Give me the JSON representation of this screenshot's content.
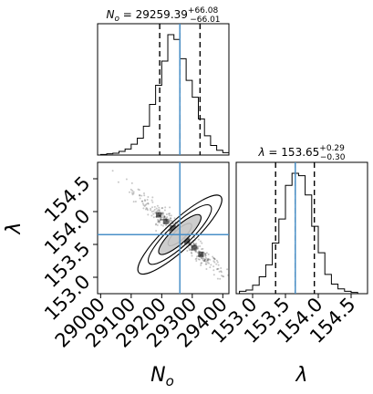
{
  "chart_data": {
    "type": "corner",
    "parameters": [
      {
        "label": "N_o",
        "label_display": "N",
        "label_sub": "o",
        "title_prefix": "N",
        "title_sub": "o",
        "title_value": "29259.39",
        "title_plus": "+66.08",
        "title_minus": "−66.01",
        "truth": 29259.39,
        "quantiles": [
          29193.38,
          29259.39,
          29325.47
        ],
        "ticks": [
          29000,
          29100,
          29200,
          29300,
          29400
        ],
        "tick_labels": [
          "29000",
          "29100",
          "29200",
          "29300",
          "29400"
        ],
        "range": [
          28990,
          29420
        ]
      },
      {
        "label": "λ",
        "title_prefix": "λ",
        "title_value": "153.65",
        "title_plus": "+0.29",
        "title_minus": "−0.30",
        "truth": 153.65,
        "quantiles": [
          153.35,
          153.65,
          153.94
        ],
        "ticks": [
          153.0,
          153.5,
          154.0,
          154.5
        ],
        "tick_labels": [
          "153.0",
          "153.5",
          "154.0",
          "154.5"
        ],
        "range": [
          152.75,
          154.75
        ]
      }
    ],
    "histograms": [
      {
        "param": "N_o",
        "bin_centers": [
          29010,
          29030,
          29050,
          29070,
          29090,
          29110,
          29130,
          29150,
          29170,
          29190,
          29210,
          29230,
          29250,
          29270,
          29290,
          29310,
          29330,
          29350,
          29370,
          29390,
          29410
        ],
        "counts": [
          0.5,
          1,
          1.5,
          3,
          5,
          9,
          14,
          24,
          42,
          58,
          78,
          100,
          96,
          80,
          62,
          48,
          30,
          16,
          8,
          4,
          2
        ]
      },
      {
        "param": "λ",
        "bin_centers": [
          152.85,
          152.95,
          153.05,
          153.15,
          153.25,
          153.35,
          153.45,
          153.55,
          153.65,
          153.75,
          153.85,
          153.95,
          154.05,
          154.15,
          154.25,
          154.35,
          154.45,
          154.55
        ],
        "counts": [
          2,
          3,
          7,
          14,
          24,
          42,
          62,
          90,
          100,
          98,
          82,
          56,
          34,
          16,
          8,
          4,
          2,
          1
        ]
      }
    ],
    "joint": {
      "x_param": "N_o",
      "y_param": "λ",
      "center": [
        29259.39,
        153.65
      ],
      "correlation": -0.97,
      "sigma": [
        66,
        0.295
      ]
    },
    "truth_color": "#4a90c8",
    "quantile_style": "dashed",
    "grid": false,
    "legend": "none"
  }
}
